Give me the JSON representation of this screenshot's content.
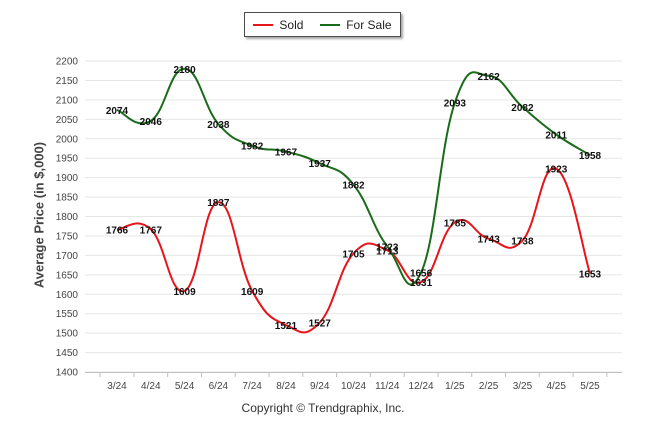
{
  "legend": {
    "sold_label": "Sold",
    "forsale_label": "For Sale"
  },
  "copyright": "Copyright © Trendgraphix, Inc.",
  "chart_data": {
    "type": "line",
    "title": "",
    "xlabel": "",
    "ylabel": "Average Price (in $,000)",
    "ylim": [
      1400,
      2200
    ],
    "ytick_step": 50,
    "grid": true,
    "legend_position": "top-center",
    "categories": [
      "3/24",
      "4/24",
      "5/24",
      "6/24",
      "7/24",
      "8/24",
      "9/24",
      "10/24",
      "11/24",
      "12/24",
      "1/25",
      "2/25",
      "3/25",
      "4/25",
      "5/25"
    ],
    "series": [
      {
        "name": "Sold",
        "color": "#e8141b",
        "values": [
          1766,
          1767,
          1609,
          1837,
          1609,
          1521,
          1527,
          1705,
          1713,
          1631,
          1785,
          1743,
          1738,
          1923,
          1653
        ]
      },
      {
        "name": "For Sale",
        "color": "#1a6b1a",
        "values": [
          2074,
          2046,
          2180,
          2038,
          1982,
          1967,
          1937,
          1882,
          1723,
          1656,
          2093,
          2162,
          2082,
          2011,
          1958
        ]
      }
    ]
  }
}
